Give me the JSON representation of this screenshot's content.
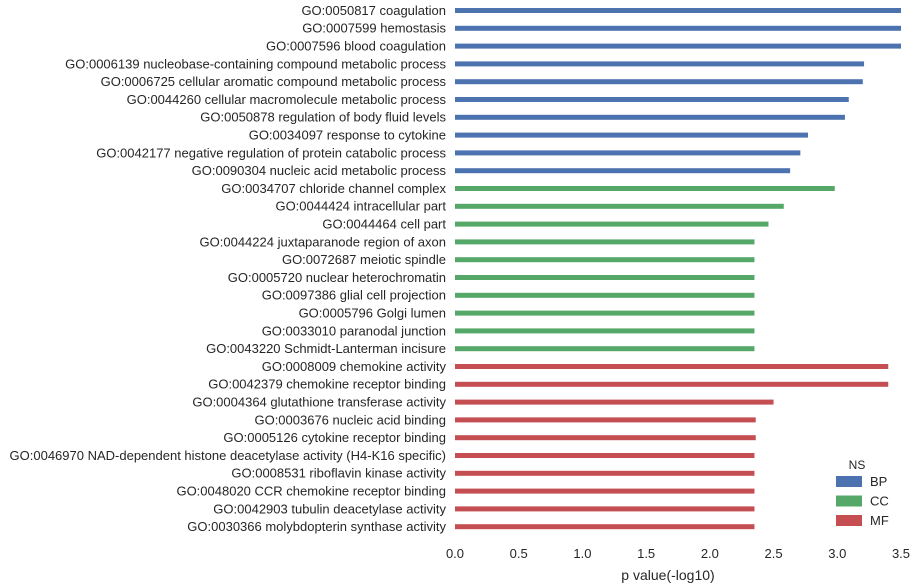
{
  "chart_data": {
    "type": "bar",
    "orientation": "horizontal",
    "xlabel": "p value(-log10)",
    "ylabel": "",
    "xlim": [
      0,
      3.5
    ],
    "xticks": [
      "0.0",
      "0.5",
      "1.0",
      "1.5",
      "2.0",
      "2.5",
      "3.0",
      "3.5"
    ],
    "grid": false,
    "legend": {
      "title": "NS",
      "placement": "bottom-right",
      "entries": [
        {
          "name": "BP",
          "color": "#4c72b0"
        },
        {
          "name": "CC",
          "color": "#55a868"
        },
        {
          "name": "MF",
          "color": "#c44e52"
        }
      ]
    },
    "categories": [
      {
        "label": "GO:0050817 coagulation",
        "value": 3.5,
        "ns": "BP"
      },
      {
        "label": "GO:0007599 hemostasis",
        "value": 3.5,
        "ns": "BP"
      },
      {
        "label": "GO:0007596 blood coagulation",
        "value": 3.5,
        "ns": "BP"
      },
      {
        "label": "GO:0006139 nucleobase-containing compound metabolic process",
        "value": 3.21,
        "ns": "BP"
      },
      {
        "label": "GO:0006725 cellular aromatic compound metabolic process",
        "value": 3.2,
        "ns": "BP"
      },
      {
        "label": "GO:0044260 cellular macromolecule metabolic process",
        "value": 3.09,
        "ns": "BP"
      },
      {
        "label": "GO:0050878 regulation of body fluid levels",
        "value": 3.06,
        "ns": "BP"
      },
      {
        "label": "GO:0034097 response to cytokine",
        "value": 2.77,
        "ns": "BP"
      },
      {
        "label": "GO:0042177 negative regulation of protein catabolic process",
        "value": 2.71,
        "ns": "BP"
      },
      {
        "label": "GO:0090304 nucleic acid metabolic process",
        "value": 2.63,
        "ns": "BP"
      },
      {
        "label": "GO:0034707 chloride channel complex",
        "value": 2.98,
        "ns": "CC"
      },
      {
        "label": "GO:0044424 intracellular part",
        "value": 2.58,
        "ns": "CC"
      },
      {
        "label": "GO:0044464 cell part",
        "value": 2.46,
        "ns": "CC"
      },
      {
        "label": "GO:0044224 juxtaparanode region of axon",
        "value": 2.35,
        "ns": "CC"
      },
      {
        "label": "GO:0072687 meiotic spindle",
        "value": 2.35,
        "ns": "CC"
      },
      {
        "label": "GO:0005720 nuclear heterochromatin",
        "value": 2.35,
        "ns": "CC"
      },
      {
        "label": "GO:0097386 glial cell projection",
        "value": 2.35,
        "ns": "CC"
      },
      {
        "label": "GO:0005796 Golgi lumen",
        "value": 2.35,
        "ns": "CC"
      },
      {
        "label": "GO:0033010 paranodal junction",
        "value": 2.35,
        "ns": "CC"
      },
      {
        "label": "GO:0043220 Schmidt-Lanterman incisure",
        "value": 2.35,
        "ns": "CC"
      },
      {
        "label": "GO:0008009 chemokine activity",
        "value": 3.4,
        "ns": "MF"
      },
      {
        "label": "GO:0042379 chemokine receptor binding",
        "value": 3.4,
        "ns": "MF"
      },
      {
        "label": "GO:0004364 glutathione transferase activity",
        "value": 2.5,
        "ns": "MF"
      },
      {
        "label": "GO:0003676 nucleic acid binding",
        "value": 2.36,
        "ns": "MF"
      },
      {
        "label": "GO:0005126 cytokine receptor binding",
        "value": 2.36,
        "ns": "MF"
      },
      {
        "label": "GO:0046970 NAD-dependent histone deacetylase activity (H4-K16 specific)",
        "value": 2.35,
        "ns": "MF"
      },
      {
        "label": "GO:0008531 riboflavin kinase activity",
        "value": 2.35,
        "ns": "MF"
      },
      {
        "label": "GO:0048020 CCR chemokine receptor binding",
        "value": 2.35,
        "ns": "MF"
      },
      {
        "label": "GO:0042903 tubulin deacetylase activity",
        "value": 2.35,
        "ns": "MF"
      },
      {
        "label": "GO:0030366 molybdopterin synthase activity",
        "value": 2.35,
        "ns": "MF"
      }
    ]
  }
}
